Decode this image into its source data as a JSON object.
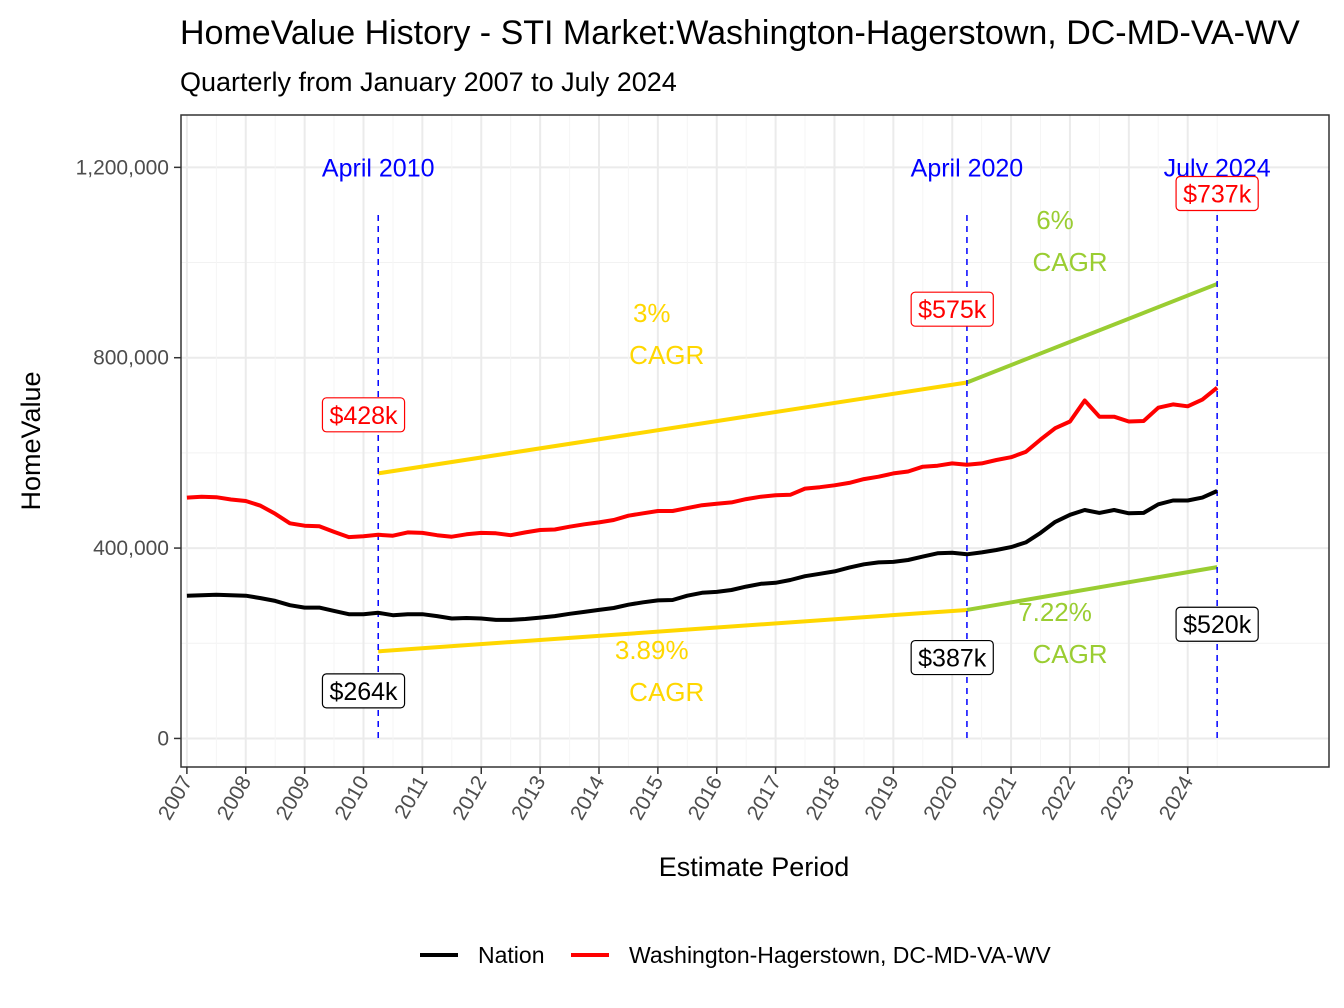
{
  "chart_data": {
    "type": "line",
    "title": "HomeValue History - STI Market:Washington-Hagerstown, DC-MD-VA-WV",
    "subtitle": "Quarterly from January 2007 to July 2024",
    "xlabel": "Estimate Period",
    "ylabel": "HomeValue",
    "xlim": [
      2006.9,
      2026.4
    ],
    "ylim": [
      -60000,
      1310000
    ],
    "x_ticks": [
      "2007",
      "2008",
      "2009",
      "2010",
      "2011",
      "2012",
      "2013",
      "2014",
      "2015",
      "2016",
      "2017",
      "2018",
      "2019",
      "2020",
      "2021",
      "2022",
      "2023",
      "2024"
    ],
    "y_ticks": [
      {
        "value": 0,
        "label": "0"
      },
      {
        "value": 400000,
        "label": "400,000"
      },
      {
        "value": 800000,
        "label": "800,000"
      },
      {
        "value": 1200000,
        "label": "1,200,000"
      }
    ],
    "series": [
      {
        "name": "Nation",
        "color": "#000000",
        "points": [
          [
            2007.0,
            300000
          ],
          [
            2007.25,
            301000
          ],
          [
            2007.5,
            302000
          ],
          [
            2007.75,
            301000
          ],
          [
            2008.0,
            300000
          ],
          [
            2008.25,
            295000
          ],
          [
            2008.5,
            289000
          ],
          [
            2008.75,
            280000
          ],
          [
            2009.0,
            275000
          ],
          [
            2009.25,
            275000
          ],
          [
            2009.5,
            268000
          ],
          [
            2009.75,
            261000
          ],
          [
            2010.0,
            261000
          ],
          [
            2010.25,
            264000
          ],
          [
            2010.5,
            259000
          ],
          [
            2010.75,
            261000
          ],
          [
            2011.0,
            261000
          ],
          [
            2011.25,
            257000
          ],
          [
            2011.5,
            252000
          ],
          [
            2011.75,
            253000
          ],
          [
            2012.0,
            252000
          ],
          [
            2012.25,
            249000
          ],
          [
            2012.5,
            249000
          ],
          [
            2012.75,
            251000
          ],
          [
            2013.0,
            254000
          ],
          [
            2013.25,
            257000
          ],
          [
            2013.5,
            262000
          ],
          [
            2013.75,
            266000
          ],
          [
            2014.0,
            270000
          ],
          [
            2014.25,
            274000
          ],
          [
            2014.5,
            281000
          ],
          [
            2014.75,
            286000
          ],
          [
            2015.0,
            290000
          ],
          [
            2015.25,
            291000
          ],
          [
            2015.5,
            300000
          ],
          [
            2015.75,
            306000
          ],
          [
            2016.0,
            308000
          ],
          [
            2016.25,
            312000
          ],
          [
            2016.5,
            319000
          ],
          [
            2016.75,
            325000
          ],
          [
            2017.0,
            327000
          ],
          [
            2017.25,
            333000
          ],
          [
            2017.5,
            341000
          ],
          [
            2017.75,
            346000
          ],
          [
            2018.0,
            351000
          ],
          [
            2018.25,
            359000
          ],
          [
            2018.5,
            366000
          ],
          [
            2018.75,
            370000
          ],
          [
            2019.0,
            371000
          ],
          [
            2019.25,
            375000
          ],
          [
            2019.5,
            382000
          ],
          [
            2019.75,
            389000
          ],
          [
            2020.0,
            390000
          ],
          [
            2020.25,
            387000
          ],
          [
            2020.5,
            391000
          ],
          [
            2020.75,
            396000
          ],
          [
            2021.0,
            402000
          ],
          [
            2021.25,
            412000
          ],
          [
            2021.5,
            432000
          ],
          [
            2021.75,
            455000
          ],
          [
            2022.0,
            470000
          ],
          [
            2022.25,
            480000
          ],
          [
            2022.5,
            474000
          ],
          [
            2022.75,
            480000
          ],
          [
            2023.0,
            473000
          ],
          [
            2023.25,
            474000
          ],
          [
            2023.5,
            492000
          ],
          [
            2023.75,
            500000
          ],
          [
            2024.0,
            500000
          ],
          [
            2024.25,
            506000
          ],
          [
            2024.5,
            520000
          ]
        ]
      },
      {
        "name": "Washington-Hagerstown, DC-MD-VA-WV",
        "color": "#ff0000",
        "points": [
          [
            2007.0,
            506000
          ],
          [
            2007.25,
            508000
          ],
          [
            2007.5,
            507000
          ],
          [
            2007.75,
            502000
          ],
          [
            2008.0,
            499000
          ],
          [
            2008.25,
            489000
          ],
          [
            2008.5,
            472000
          ],
          [
            2008.75,
            452000
          ],
          [
            2009.0,
            447000
          ],
          [
            2009.25,
            446000
          ],
          [
            2009.5,
            434000
          ],
          [
            2009.75,
            423000
          ],
          [
            2010.0,
            425000
          ],
          [
            2010.25,
            428000
          ],
          [
            2010.5,
            426000
          ],
          [
            2010.75,
            433000
          ],
          [
            2011.0,
            432000
          ],
          [
            2011.25,
            427000
          ],
          [
            2011.5,
            424000
          ],
          [
            2011.75,
            429000
          ],
          [
            2012.0,
            432000
          ],
          [
            2012.25,
            431000
          ],
          [
            2012.5,
            427000
          ],
          [
            2012.75,
            433000
          ],
          [
            2013.0,
            438000
          ],
          [
            2013.25,
            439000
          ],
          [
            2013.5,
            445000
          ],
          [
            2013.75,
            450000
          ],
          [
            2014.0,
            454000
          ],
          [
            2014.25,
            459000
          ],
          [
            2014.5,
            468000
          ],
          [
            2014.75,
            473000
          ],
          [
            2015.0,
            478000
          ],
          [
            2015.25,
            478000
          ],
          [
            2015.5,
            484000
          ],
          [
            2015.75,
            490000
          ],
          [
            2016.0,
            493000
          ],
          [
            2016.25,
            496000
          ],
          [
            2016.5,
            503000
          ],
          [
            2016.75,
            508000
          ],
          [
            2017.0,
            511000
          ],
          [
            2017.25,
            512000
          ],
          [
            2017.5,
            525000
          ],
          [
            2017.75,
            528000
          ],
          [
            2018.0,
            532000
          ],
          [
            2018.25,
            537000
          ],
          [
            2018.5,
            545000
          ],
          [
            2018.75,
            550000
          ],
          [
            2019.0,
            557000
          ],
          [
            2019.25,
            561000
          ],
          [
            2019.5,
            571000
          ],
          [
            2019.75,
            573000
          ],
          [
            2020.0,
            578000
          ],
          [
            2020.25,
            575000
          ],
          [
            2020.5,
            578000
          ],
          [
            2020.75,
            585000
          ],
          [
            2021.0,
            591000
          ],
          [
            2021.25,
            602000
          ],
          [
            2021.5,
            628000
          ],
          [
            2021.75,
            652000
          ],
          [
            2022.0,
            666000
          ],
          [
            2022.25,
            710000
          ],
          [
            2022.5,
            676000
          ],
          [
            2022.75,
            676000
          ],
          [
            2023.0,
            666000
          ],
          [
            2023.25,
            667000
          ],
          [
            2023.5,
            695000
          ],
          [
            2023.75,
            702000
          ],
          [
            2024.0,
            698000
          ],
          [
            2024.25,
            712000
          ],
          [
            2024.5,
            737000
          ]
        ]
      }
    ],
    "trend_lines": [
      {
        "from": [
          2010.25,
          557000
        ],
        "to": [
          2020.25,
          748000
        ],
        "color": "#ffd700"
      },
      {
        "from": [
          2020.25,
          748000
        ],
        "to": [
          2024.5,
          955000
        ],
        "color": "#9acd32"
      },
      {
        "from": [
          2010.25,
          183000
        ],
        "to": [
          2020.25,
          270000
        ],
        "color": "#ffd700"
      },
      {
        "from": [
          2020.25,
          270000
        ],
        "to": [
          2024.5,
          360000
        ],
        "color": "#9acd32"
      }
    ],
    "vlines": [
      {
        "x": 2010.25,
        "label": "April 2010",
        "ymin": 0,
        "ymax": 1100000
      },
      {
        "x": 2020.25,
        "label": "April 2020",
        "ymin": 0,
        "ymax": 1100000
      },
      {
        "x": 2024.5,
        "label": "July 2024",
        "ymin": 0,
        "ymax": 1100000
      }
    ],
    "cagr_labels": [
      {
        "x": 2015.1,
        "y": 850000,
        "line1": "3%",
        "line2": "CAGR",
        "color": "#ffd700"
      },
      {
        "x": 2021.95,
        "y": 1045000,
        "line1": "6%",
        "line2": "CAGR",
        "color": "#9acd32"
      },
      {
        "x": 2015.1,
        "y": 142000,
        "line1": "3.89%",
        "line2": "CAGR",
        "color": "#ffd700"
      },
      {
        "x": 2021.95,
        "y": 222000,
        "line1": "7.22%",
        "line2": "CAGR",
        "color": "#9acd32"
      }
    ],
    "value_labels": [
      {
        "x": 2010.0,
        "y": 680000,
        "text": "$428k",
        "color": "#ff0000"
      },
      {
        "x": 2020.0,
        "y": 902000,
        "text": "$575k",
        "color": "#ff0000"
      },
      {
        "x": 2024.5,
        "y": 1145000,
        "text": "$737k",
        "color": "#ff0000"
      },
      {
        "x": 2010.0,
        "y": 100000,
        "text": "$264k",
        "color": "#000000"
      },
      {
        "x": 2020.0,
        "y": 170000,
        "text": "$387k",
        "color": "#000000"
      },
      {
        "x": 2024.5,
        "y": 240000,
        "text": "$520k",
        "color": "#000000"
      }
    ],
    "grid": true,
    "legend_position": "bottom",
    "legend": [
      "Nation",
      "Washington-Hagerstown, DC-MD-VA-WV"
    ]
  }
}
